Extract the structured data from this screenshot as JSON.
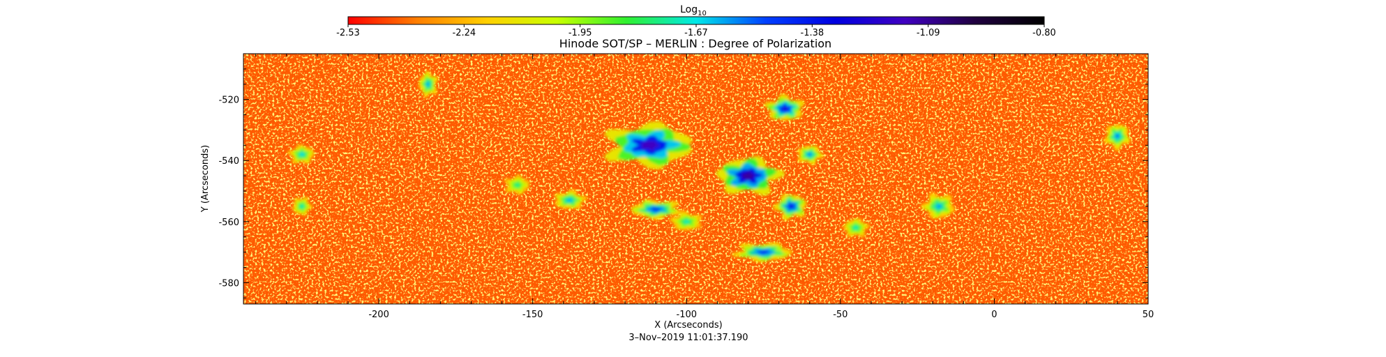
{
  "colorbar": {
    "label_base": "Log",
    "label_sub": "10",
    "ticks": [
      "-2.53",
      "-2.24",
      "-1.95",
      "-1.67",
      "-1.38",
      "-1.09",
      "-0.80"
    ],
    "range": [
      -2.53,
      -0.8
    ],
    "colors": [
      "#ff0000",
      "#ff8000",
      "#ffd000",
      "#c8ff00",
      "#30f030",
      "#00e8e8",
      "#0040ff",
      "#0000e0",
      "#4000c0",
      "#200040",
      "#000000"
    ]
  },
  "chart_data": {
    "type": "heatmap",
    "title": "Hinode SOT/SP – MERLIN : Degree of Polarization",
    "xlabel": "X (Arcseconds)",
    "ylabel": "Y (Arcseconds)",
    "xlim": [
      -244,
      50
    ],
    "ylim": [
      -587,
      -505
    ],
    "x_ticks": [
      "-200",
      "-150",
      "-100",
      "-50",
      "0",
      "50"
    ],
    "x_tick_values": [
      -200,
      -150,
      -100,
      -50,
      0,
      50
    ],
    "y_ticks": [
      "-520",
      "-540",
      "-560",
      "-580"
    ],
    "y_tick_values": [
      -520,
      -540,
      -560,
      -580
    ],
    "background_level": -2.35,
    "active_regions": [
      {
        "x": -112,
        "y": -535,
        "rx": 14,
        "ry": 7,
        "peak": -1.15
      },
      {
        "x": -80,
        "y": -545,
        "rx": 10,
        "ry": 6,
        "peak": -1.1
      },
      {
        "x": -68,
        "y": -523,
        "rx": 6,
        "ry": 4,
        "peak": -1.3
      },
      {
        "x": -66,
        "y": -555,
        "rx": 5,
        "ry": 4,
        "peak": -1.35
      },
      {
        "x": -110,
        "y": -556,
        "rx": 8,
        "ry": 3,
        "peak": -1.4
      },
      {
        "x": -75,
        "y": -570,
        "rx": 9,
        "ry": 3,
        "peak": -1.4
      },
      {
        "x": -60,
        "y": -538,
        "rx": 4,
        "ry": 3,
        "peak": -1.55
      },
      {
        "x": -138,
        "y": -553,
        "rx": 5,
        "ry": 3,
        "peak": -1.6
      },
      {
        "x": -225,
        "y": -538,
        "rx": 4,
        "ry": 3,
        "peak": -1.65
      },
      {
        "x": -184,
        "y": -515,
        "rx": 3,
        "ry": 4,
        "peak": -1.6
      },
      {
        "x": -18,
        "y": -555,
        "rx": 5,
        "ry": 4,
        "peak": -1.6
      },
      {
        "x": 40,
        "y": -532,
        "rx": 4,
        "ry": 4,
        "peak": -1.55
      },
      {
        "x": -225,
        "y": -555,
        "rx": 3,
        "ry": 3,
        "peak": -1.7
      },
      {
        "x": -155,
        "y": -548,
        "rx": 4,
        "ry": 3,
        "peak": -1.75
      },
      {
        "x": -45,
        "y": -562,
        "rx": 4,
        "ry": 3,
        "peak": -1.7
      },
      {
        "x": -100,
        "y": -560,
        "rx": 5,
        "ry": 3,
        "peak": -1.7
      }
    ]
  },
  "footer": {
    "timestamp": "3–Nov–2019 11:01:37.190"
  }
}
